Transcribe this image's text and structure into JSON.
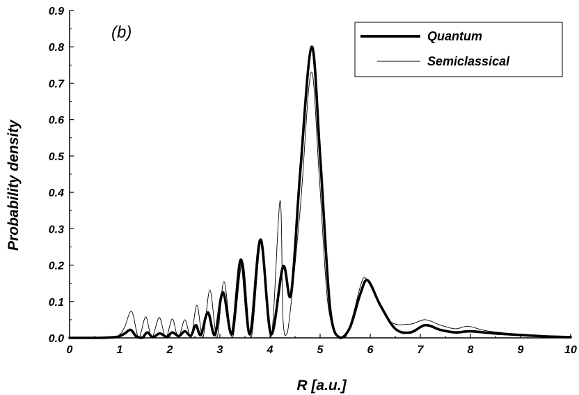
{
  "chart_data": {
    "type": "line",
    "panel_label": "(b)",
    "xlabel": "R [a.u.]",
    "ylabel": "Probability density",
    "xlim": [
      0,
      10
    ],
    "ylim": [
      0,
      0.9
    ],
    "x_ticks": [
      0,
      1,
      2,
      3,
      4,
      5,
      6,
      7,
      8,
      9,
      10
    ],
    "x_tick_labels": [
      "0",
      "1",
      "2",
      "3",
      "4",
      "5",
      "6",
      "7",
      "8",
      "9",
      "10"
    ],
    "y_ticks": [
      0,
      0.1,
      0.2,
      0.3,
      0.4,
      0.5,
      0.6,
      0.7,
      0.8,
      0.9
    ],
    "y_tick_labels": [
      "0.0",
      "0.1",
      "0.2",
      "0.3",
      "0.4",
      "0.5",
      "0.6",
      "0.7",
      "0.8",
      "0.9"
    ],
    "grid": false,
    "legend_position": "top-right",
    "series": [
      {
        "name": "Quantum",
        "line_width": "thick",
        "color": "#000000",
        "x": [
          0.0,
          0.6,
          0.9,
          1.0,
          1.1,
          1.22,
          1.33,
          1.45,
          1.55,
          1.66,
          1.8,
          1.94,
          2.05,
          2.18,
          2.3,
          2.42,
          2.52,
          2.62,
          2.76,
          2.9,
          3.06,
          3.24,
          3.42,
          3.6,
          3.81,
          4.02,
          4.26,
          4.42,
          4.6,
          4.83,
          5.0,
          5.2,
          5.4,
          5.6,
          5.8,
          5.95,
          6.2,
          6.5,
          6.8,
          7.1,
          7.4,
          7.7,
          8.0,
          8.5,
          9.0,
          9.5,
          10.0
        ],
        "y": [
          0.0,
          0.0,
          0.002,
          0.005,
          0.012,
          0.022,
          0.004,
          0.0,
          0.015,
          0.002,
          0.012,
          0.003,
          0.015,
          0.005,
          0.018,
          0.006,
          0.035,
          0.008,
          0.07,
          0.008,
          0.125,
          0.01,
          0.215,
          0.01,
          0.27,
          0.01,
          0.196,
          0.12,
          0.45,
          0.8,
          0.5,
          0.08,
          0.0,
          0.03,
          0.12,
          0.158,
          0.09,
          0.025,
          0.015,
          0.035,
          0.022,
          0.015,
          0.018,
          0.012,
          0.008,
          0.004,
          0.002
        ]
      },
      {
        "name": "Semiclassical",
        "line_width": "thin",
        "color": "#000000",
        "x": [
          0.0,
          0.6,
          0.9,
          1.0,
          1.1,
          1.24,
          1.38,
          1.52,
          1.64,
          1.79,
          1.92,
          2.05,
          2.17,
          2.3,
          2.42,
          2.54,
          2.66,
          2.8,
          2.94,
          3.08,
          3.25,
          3.45,
          3.62,
          3.83,
          4.02,
          4.2,
          4.26,
          4.35,
          4.6,
          4.82,
          4.98,
          5.15,
          5.35,
          5.5,
          5.65,
          5.8,
          5.9,
          6.1,
          6.4,
          6.8,
          7.1,
          7.4,
          7.7,
          7.95,
          8.3,
          8.8,
          9.5,
          10.0
        ],
        "y": [
          0.0,
          0.0,
          0.003,
          0.008,
          0.03,
          0.073,
          0.0,
          0.058,
          0.0,
          0.056,
          0.0,
          0.052,
          0.0,
          0.05,
          0.0,
          0.09,
          0.0,
          0.132,
          0.0,
          0.155,
          0.0,
          0.21,
          0.0,
          0.272,
          0.0,
          0.377,
          0.05,
          0.015,
          0.35,
          0.73,
          0.45,
          0.1,
          0.005,
          0.0,
          0.06,
          0.14,
          0.165,
          0.12,
          0.045,
          0.038,
          0.05,
          0.035,
          0.025,
          0.032,
          0.02,
          0.012,
          0.005,
          0.002
        ]
      }
    ]
  }
}
